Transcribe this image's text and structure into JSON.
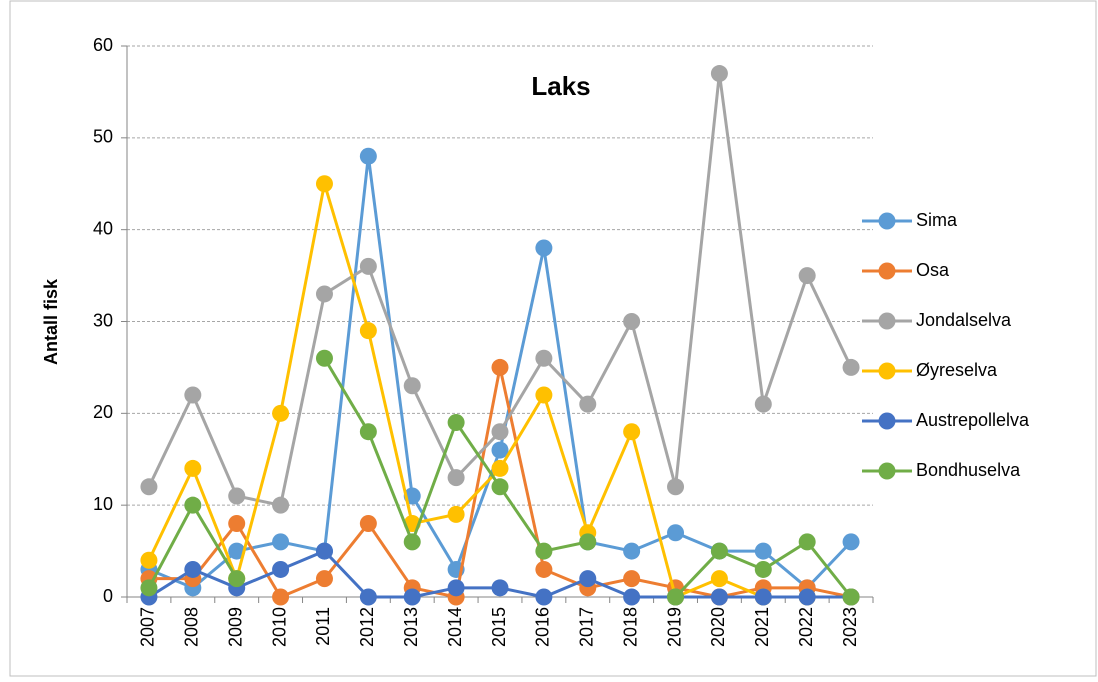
{
  "chart_data": {
    "type": "line",
    "title": "Laks",
    "y_label": "Antall fisk",
    "categories": [
      "2007",
      "2008",
      "2009",
      "2010",
      "2011",
      "2012",
      "2013",
      "2014",
      "2015",
      "2016",
      "2017",
      "2018",
      "2019",
      "2020",
      "2021",
      "2022",
      "2023"
    ],
    "ylim": [
      0,
      60
    ],
    "yticks": [
      0,
      10,
      20,
      30,
      40,
      50,
      60
    ],
    "grid": true,
    "legend": "right",
    "series": [
      {
        "name": "Sima",
        "color": "#5b9bd5",
        "values": [
          3,
          1,
          5,
          6,
          5,
          48,
          11,
          3,
          16,
          38,
          6,
          5,
          7,
          5,
          5,
          1,
          6
        ]
      },
      {
        "name": "Osa",
        "color": "#ed7d31",
        "values": [
          2,
          2,
          8,
          0,
          2,
          8,
          1,
          0,
          25,
          3,
          1,
          2,
          1,
          0,
          1,
          1,
          0
        ]
      },
      {
        "name": "Jondalselva",
        "color": "#a5a5a5",
        "values": [
          12,
          22,
          11,
          10,
          33,
          36,
          23,
          13,
          18,
          26,
          21,
          30,
          12,
          57,
          21,
          35,
          25
        ]
      },
      {
        "name": "Øyreselva",
        "color": "#ffc000",
        "values": [
          4,
          14,
          2,
          20,
          45,
          29,
          8,
          9,
          14,
          22,
          7,
          18,
          0,
          2,
          0,
          0,
          0
        ]
      },
      {
        "name": "Austrepollelva",
        "color": "#4472c4",
        "values": [
          0,
          3,
          1,
          3,
          5,
          0,
          0,
          1,
          1,
          0,
          2,
          0,
          0,
          0,
          0,
          0,
          0
        ]
      },
      {
        "name": "Bondhuselva",
        "color": "#70ad47",
        "values": [
          1,
          10,
          2,
          null,
          26,
          18,
          6,
          19,
          12,
          5,
          6,
          null,
          0,
          5,
          3,
          6,
          0
        ]
      }
    ]
  }
}
